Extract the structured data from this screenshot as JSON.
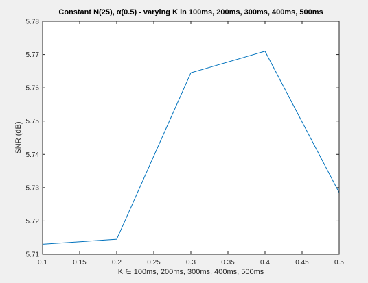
{
  "chart_data": {
    "type": "line",
    "title": "Constant N(25), α(0.5) - varying K in 100ms, 200ms, 300ms, 400ms, 500ms",
    "xlabel": "K ∈  100ms, 200ms, 300ms, 400ms, 500ms",
    "ylabel": "SNR (dB)",
    "xlim": [
      0.1,
      0.5
    ],
    "ylim": [
      5.71,
      5.78
    ],
    "xticks": [
      "0.1",
      "0.15",
      "0.2",
      "0.25",
      "0.3",
      "0.35",
      "0.4",
      "0.45",
      "0.5"
    ],
    "yticks": [
      "5.71",
      "5.72",
      "5.73",
      "5.74",
      "5.75",
      "5.76",
      "5.77",
      "5.78"
    ],
    "grid": false,
    "series": [
      {
        "color": "#0072BD",
        "x": [
          0.1,
          0.2,
          0.3,
          0.4,
          0.5
        ],
        "y": [
          5.713,
          5.7145,
          5.7645,
          5.771,
          5.7285
        ]
      }
    ]
  }
}
